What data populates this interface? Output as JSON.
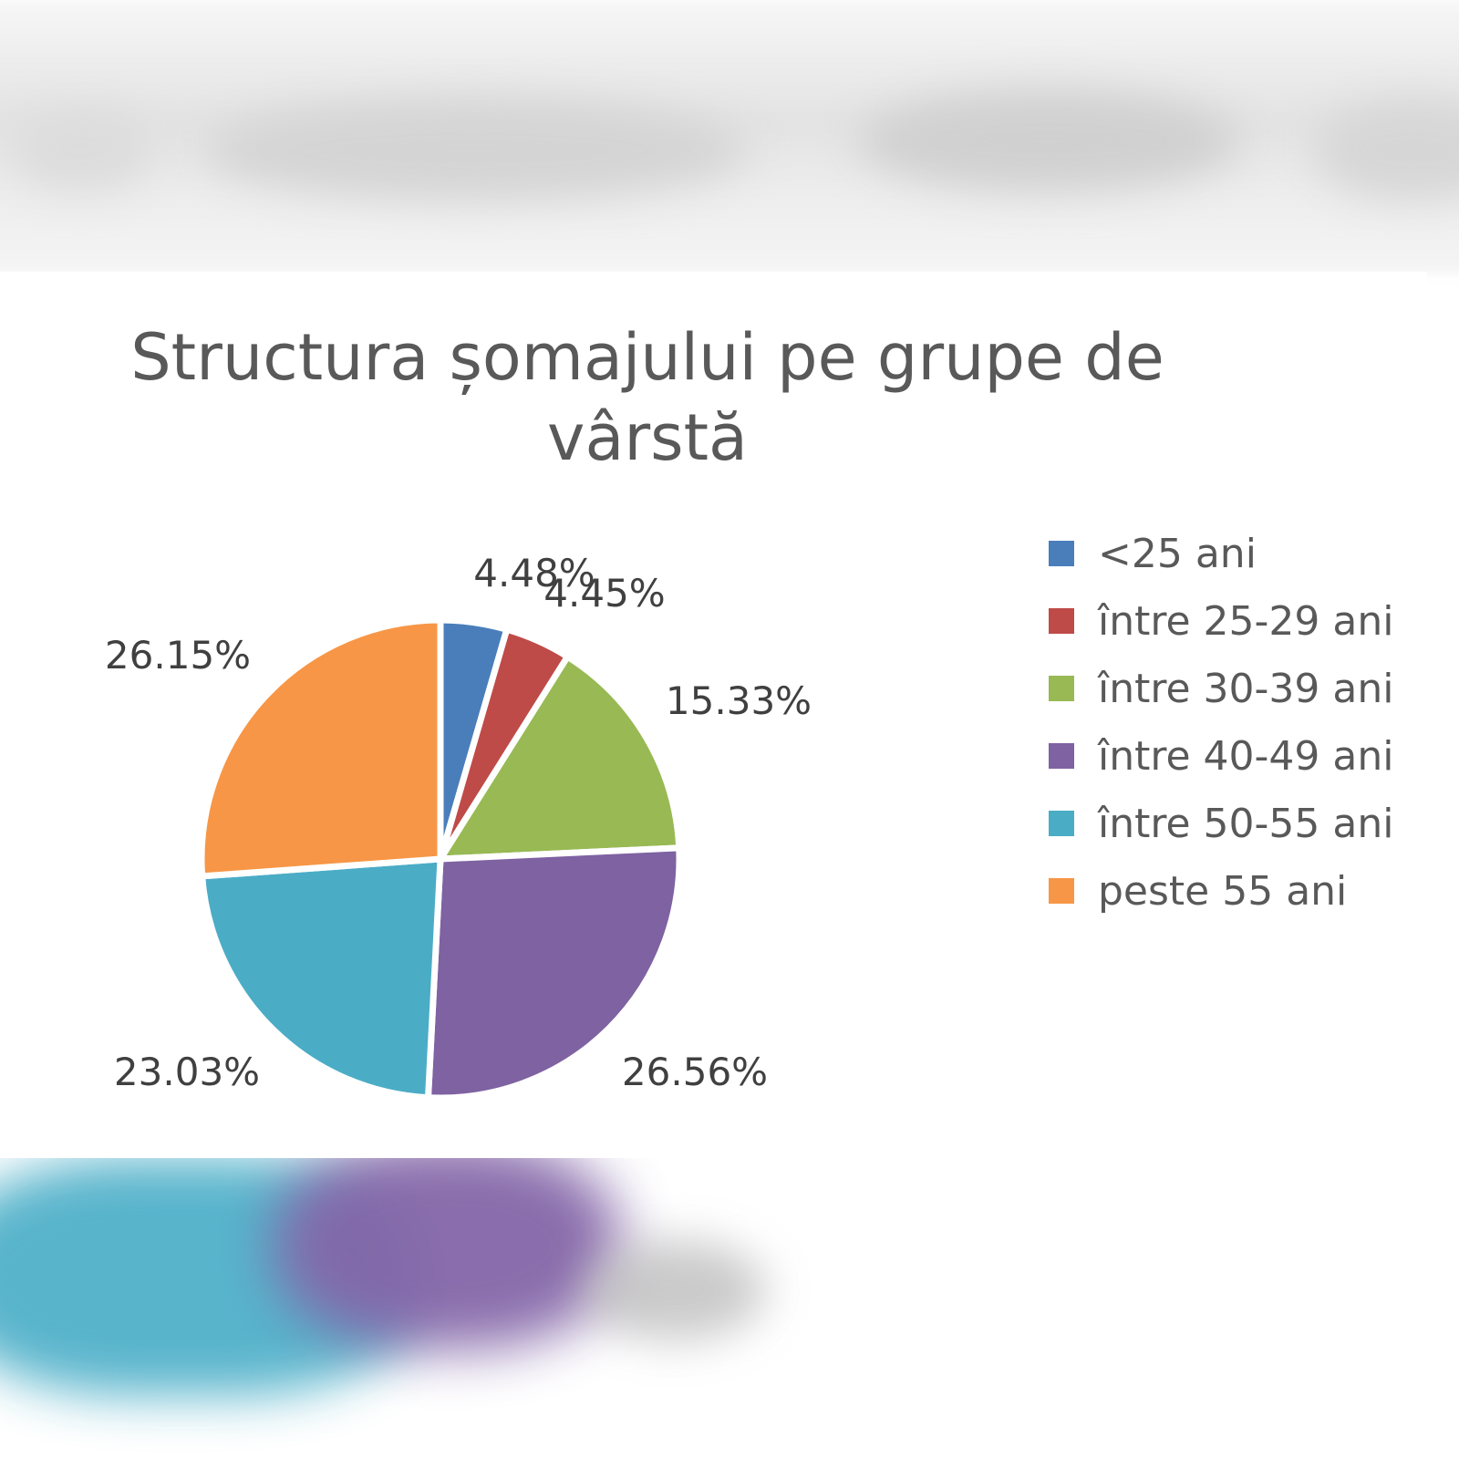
{
  "chart_data": {
    "type": "pie",
    "title": "Structura șomajului pe grupe de vârstă",
    "categories": [
      "<25 ani",
      "între 25-29 ani",
      "între 30-39 ani",
      "între 40-49 ani",
      "între 50-55 ani",
      "peste 55 ani"
    ],
    "values": [
      4.48,
      4.45,
      15.33,
      26.56,
      23.03,
      26.15
    ],
    "labels": [
      "4.48%",
      "4.45%",
      "15.33%",
      "26.56%",
      "23.03%",
      "26.15%"
    ],
    "colors": [
      "#4a7ebb",
      "#be4b48",
      "#98b954",
      "#7e62a1",
      "#4bacc6",
      "#f79646"
    ],
    "legend_position": "right",
    "start_angle_deg": 0,
    "direction": "clockwise"
  }
}
